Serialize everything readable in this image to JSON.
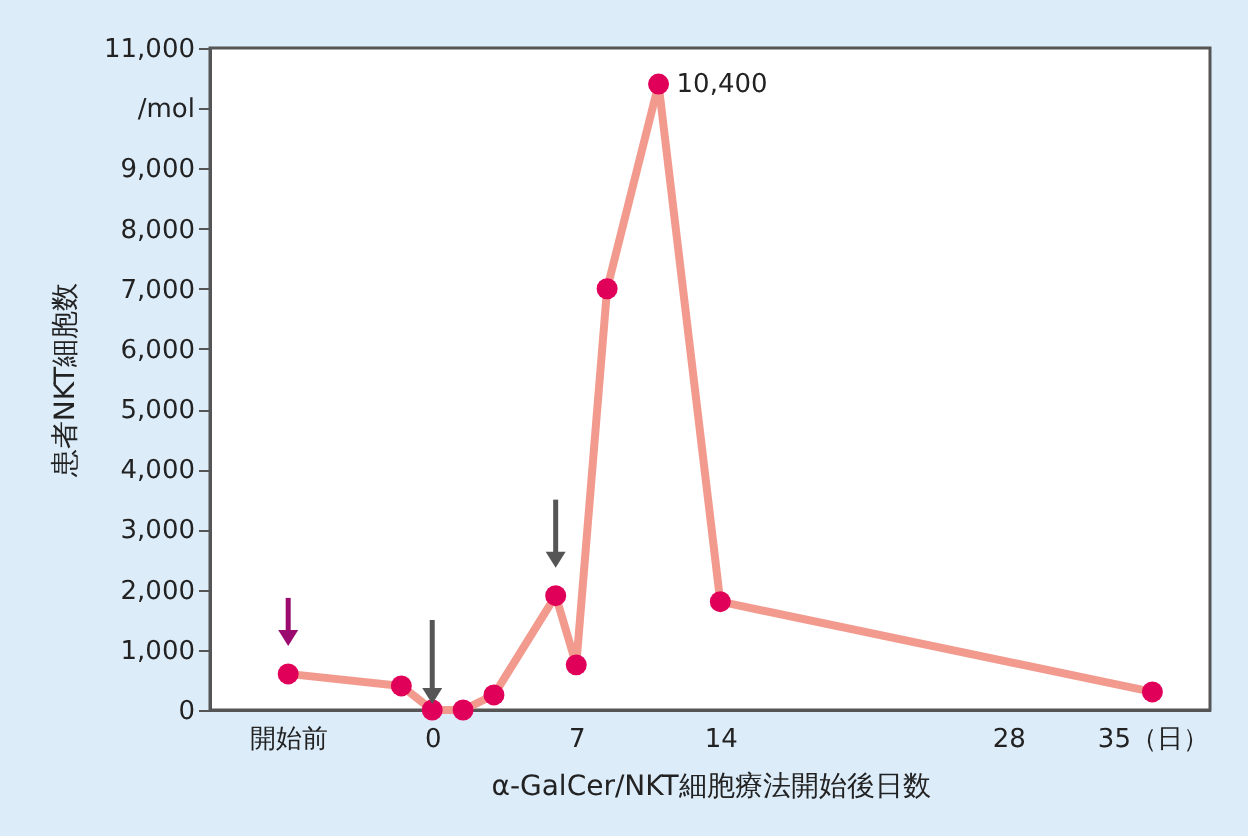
{
  "chart_data": {
    "type": "line",
    "xlabel": "α-GalCer/NKT細胞療法開始後日数",
    "ylabel": "患者NKT細胞数",
    "x": [
      -7,
      -1.5,
      0,
      1.5,
      3,
      6,
      7,
      8.5,
      11,
      14,
      35
    ],
    "xlim": [
      -10.8,
      37.8
    ],
    "xticks": [
      {
        "value": -7,
        "label": "開始前"
      },
      0,
      7,
      14,
      28,
      {
        "value": 35,
        "label": "35（日）"
      }
    ],
    "ylim": [
      0,
      11000
    ],
    "yticks": [
      0,
      {
        "value": 1000,
        "label": "1,000"
      },
      {
        "value": 2000,
        "label": "2,000"
      },
      {
        "value": 3000,
        "label": "3,000"
      },
      {
        "value": 4000,
        "label": "4,000"
      },
      {
        "value": 5000,
        "label": "5,000"
      },
      {
        "value": 6000,
        "label": "6,000"
      },
      {
        "value": 7000,
        "label": "7,000"
      },
      {
        "value": 8000,
        "label": "8,000"
      },
      {
        "value": 9000,
        "label": "9,000"
      },
      {
        "value": 10000,
        "label": "/mol"
      },
      {
        "value": 11000,
        "label": "11,000"
      }
    ],
    "series": [
      {
        "color": "#f29a8e",
        "colors": [
          "#e0005a",
          "#e0005a",
          "#e0005a",
          "#e0005a",
          "#e0005a",
          "#e0005a",
          "#e0005a",
          "#e0005a",
          "#e0005a",
          "#e0005a",
          "#e0005a"
        ],
        "values": [
          600,
          400,
          0,
          0,
          250,
          1900,
          750,
          7000,
          10400,
          1800,
          300
        ],
        "value_labels": [
          null,
          null,
          null,
          null,
          null,
          null,
          null,
          null,
          "10,400",
          null,
          null
        ]
      }
    ],
    "marker": "circle",
    "grid": false
  }
}
